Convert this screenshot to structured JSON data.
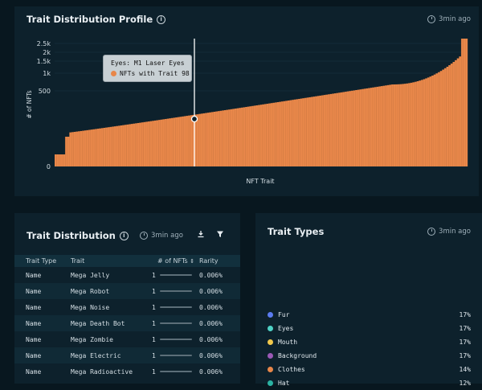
{
  "profile": {
    "title": "Trait Distribution Profile",
    "timestamp": "3min ago",
    "tooltip": {
      "trait": "Eyes: M1 Laser Eyes",
      "label": "NFTs with Trait 98"
    }
  },
  "chart_data": {
    "type": "bar",
    "title": "Trait Distribution Profile",
    "xlabel": "NFT Trait",
    "ylabel": "# of NFTs",
    "yticks": [
      "2.5k",
      "2k",
      "1.5k",
      "1k",
      "500",
      "0"
    ],
    "n_bars": 195,
    "value_range": [
      1,
      2500
    ],
    "highlight": {
      "trait": "Eyes: M1 Laser Eyes",
      "value": 98
    },
    "bar_color": "#e8874a",
    "grid": true
  },
  "distribution": {
    "title": "Trait Distribution",
    "timestamp": "3min ago",
    "columns": [
      "Trait Type",
      "Trait",
      "# of NFTs",
      "Rarity"
    ],
    "rows": [
      {
        "type": "Name",
        "trait": "Mega Jelly",
        "count": "1",
        "rarity": "0.006%"
      },
      {
        "type": "Name",
        "trait": "Mega Robot",
        "count": "1",
        "rarity": "0.006%"
      },
      {
        "type": "Name",
        "trait": "Mega Noise",
        "count": "1",
        "rarity": "0.006%"
      },
      {
        "type": "Name",
        "trait": "Mega Death Bot",
        "count": "1",
        "rarity": "0.006%"
      },
      {
        "type": "Name",
        "trait": "Mega Zombie",
        "count": "1",
        "rarity": "0.006%"
      },
      {
        "type": "Name",
        "trait": "Mega Electric",
        "count": "1",
        "rarity": "0.006%"
      },
      {
        "type": "Name",
        "trait": "Mega Radioactive",
        "count": "1",
        "rarity": "0.006%"
      }
    ]
  },
  "trait_types": {
    "title": "Trait Types",
    "timestamp": "3min ago",
    "items": [
      {
        "name": "Fur",
        "pct": "17%",
        "color": "#5b7cf0"
      },
      {
        "name": "Eyes",
        "pct": "17%",
        "color": "#4fd1c5"
      },
      {
        "name": "Mouth",
        "pct": "17%",
        "color": "#f2c94c"
      },
      {
        "name": "Background",
        "pct": "17%",
        "color": "#9b59b6"
      },
      {
        "name": "Clothes",
        "pct": "14%",
        "color": "#e8874a"
      },
      {
        "name": "Hat",
        "pct": "12%",
        "color": "#2bb3a3"
      }
    ]
  }
}
